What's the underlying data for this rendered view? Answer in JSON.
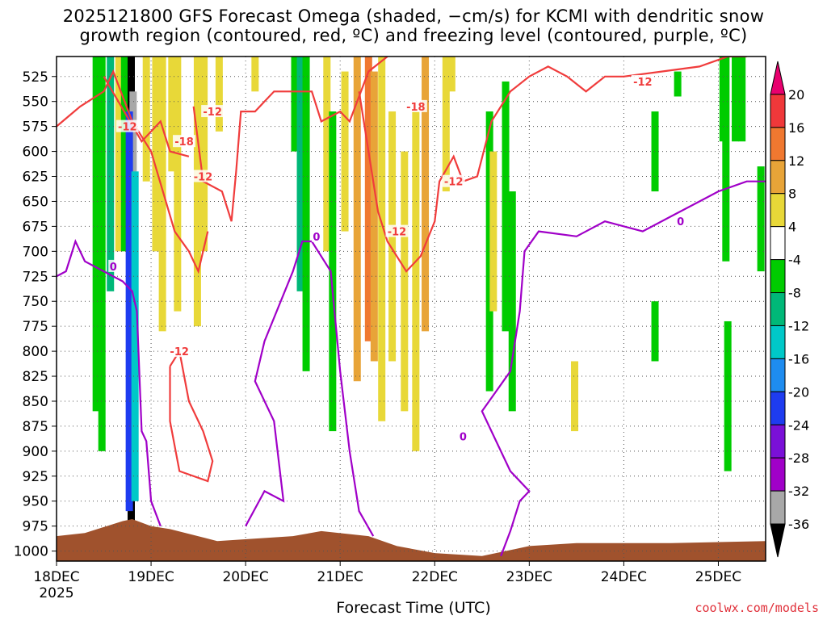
{
  "title_line1": "2025121800 GFS Forecast Omega (shaded, −cm/s) for KCMI with dendritic snow",
  "title_line2": "growth region (contoured, red, ºC) and freezing level (contoured, purple, ºC)",
  "x_axis_label": "Forecast Time (UTC)",
  "credit": "coolwx.com/models",
  "chart_data": {
    "type": "heatmap",
    "title": "2025121800 GFS Forecast Omega (shaded, −cm/s) for KCMI with dendritic snow growth region (contoured, red, ºC) and freezing level (contoured, purple, ºC)",
    "xlabel": "Forecast Time (UTC)",
    "ylabel": "",
    "x_ticks": [
      "18DEC",
      "19DEC",
      "20DEC",
      "21DEC",
      "22DEC",
      "23DEC",
      "24DEC",
      "25DEC"
    ],
    "x_tick_year": "2025",
    "x_range_days": [
      0,
      7.5
    ],
    "y_ticks": [
      525,
      550,
      575,
      600,
      625,
      650,
      675,
      700,
      725,
      750,
      775,
      800,
      825,
      850,
      875,
      900,
      925,
      950,
      975,
      1000
    ],
    "y_range_hpa": [
      505,
      1010
    ],
    "grid": "dotted",
    "colorbar": {
      "position": "right",
      "labels": [
        "20",
        "16",
        "12",
        "8",
        "4",
        "-4",
        "-8",
        "-12",
        "-16",
        "-20",
        "-24",
        "-28",
        "-32",
        "-36"
      ],
      "bins": [
        {
          "min": 20,
          "max": null,
          "color": "#e8006e"
        },
        {
          "min": 16,
          "max": 20,
          "color": "#f0383a"
        },
        {
          "min": 12,
          "max": 16,
          "color": "#f07830"
        },
        {
          "min": 8,
          "max": 12,
          "color": "#e8a438"
        },
        {
          "min": 4,
          "max": 8,
          "color": "#e8d838"
        },
        {
          "min": -4,
          "max": 4,
          "color": "#ffffff"
        },
        {
          "min": -8,
          "max": -4,
          "color": "#00cc00"
        },
        {
          "min": -12,
          "max": -8,
          "color": "#00b878"
        },
        {
          "min": -16,
          "max": -12,
          "color": "#00c8c8"
        },
        {
          "min": -20,
          "max": -16,
          "color": "#1e8cf0"
        },
        {
          "min": -24,
          "max": -20,
          "color": "#1e3cf0"
        },
        {
          "min": -28,
          "max": -24,
          "color": "#7a10d8"
        },
        {
          "min": -32,
          "max": -28,
          "color": "#a000c8"
        },
        {
          "min": -36,
          "max": -32,
          "color": "#a8a8a8"
        },
        {
          "min": null,
          "max": -36,
          "color": "#000000"
        }
      ]
    },
    "omega_shading": [
      {
        "t": 0.42,
        "p1": 505,
        "p2": 860,
        "value": -8
      },
      {
        "t": 0.48,
        "p1": 505,
        "p2": 900,
        "value": -6
      },
      {
        "t": 0.57,
        "p1": 505,
        "p2": 740,
        "value": -10
      },
      {
        "t": 0.66,
        "p1": 505,
        "p2": 700,
        "value": 5
      },
      {
        "t": 0.72,
        "p1": 505,
        "p2": 700,
        "value": -6
      },
      {
        "t": 0.79,
        "p1": 505,
        "p2": 970,
        "value": -40
      },
      {
        "t": 0.81,
        "p1": 540,
        "p2": 950,
        "value": -36
      },
      {
        "t": 0.77,
        "p1": 560,
        "p2": 960,
        "value": -24
      },
      {
        "t": 0.83,
        "p1": 620,
        "p2": 950,
        "value": -14
      },
      {
        "t": 0.95,
        "p1": 505,
        "p2": 630,
        "value": 5
      },
      {
        "t": 1.05,
        "p1": 505,
        "p2": 700,
        "value": 4.5
      },
      {
        "t": 1.12,
        "p1": 505,
        "p2": 780,
        "value": 5
      },
      {
        "t": 1.22,
        "p1": 505,
        "p2": 620,
        "value": 6
      },
      {
        "t": 1.28,
        "p1": 505,
        "p2": 760,
        "value": 5
      },
      {
        "t": 1.49,
        "p1": 505,
        "p2": 775,
        "value": 6
      },
      {
        "t": 1.56,
        "p1": 505,
        "p2": 700,
        "value": 5
      },
      {
        "t": 1.72,
        "p1": 505,
        "p2": 580,
        "value": 5
      },
      {
        "t": 2.1,
        "p1": 505,
        "p2": 540,
        "value": 5
      },
      {
        "t": 2.52,
        "p1": 505,
        "p2": 600,
        "value": -8
      },
      {
        "t": 2.58,
        "p1": 505,
        "p2": 740,
        "value": -12
      },
      {
        "t": 2.64,
        "p1": 505,
        "p2": 820,
        "value": -6
      },
      {
        "t": 2.86,
        "p1": 505,
        "p2": 700,
        "value": 5
      },
      {
        "t": 2.92,
        "p1": 560,
        "p2": 880,
        "value": -6
      },
      {
        "t": 3.05,
        "p1": 520,
        "p2": 680,
        "value": 5
      },
      {
        "t": 3.18,
        "p1": 505,
        "p2": 830,
        "value": 8
      },
      {
        "t": 3.3,
        "p1": 505,
        "p2": 790,
        "value": 13
      },
      {
        "t": 3.36,
        "p1": 520,
        "p2": 810,
        "value": 9
      },
      {
        "t": 3.44,
        "p1": 505,
        "p2": 870,
        "value": 6
      },
      {
        "t": 3.55,
        "p1": 560,
        "p2": 810,
        "value": 5
      },
      {
        "t": 3.68,
        "p1": 600,
        "p2": 860,
        "value": 5
      },
      {
        "t": 3.8,
        "p1": 560,
        "p2": 900,
        "value": 6
      },
      {
        "t": 3.9,
        "p1": 505,
        "p2": 780,
        "value": 9
      },
      {
        "t": 4.12,
        "p1": 505,
        "p2": 640,
        "value": 5
      },
      {
        "t": 4.18,
        "p1": 505,
        "p2": 540,
        "value": 5
      },
      {
        "t": 4.58,
        "p1": 560,
        "p2": 840,
        "value": -6
      },
      {
        "t": 4.62,
        "p1": 600,
        "p2": 760,
        "value": 5
      },
      {
        "t": 4.75,
        "p1": 530,
        "p2": 780,
        "value": -6
      },
      {
        "t": 4.82,
        "p1": 640,
        "p2": 860,
        "value": -6
      },
      {
        "t": 5.48,
        "p1": 810,
        "p2": 880,
        "value": 5
      },
      {
        "t": 6.33,
        "p1": 560,
        "p2": 640,
        "value": -6
      },
      {
        "t": 6.33,
        "p1": 750,
        "p2": 810,
        "value": -6
      },
      {
        "t": 6.57,
        "p1": 520,
        "p2": 545,
        "value": -6
      },
      {
        "t": 7.05,
        "p1": 505,
        "p2": 590,
        "value": -6
      },
      {
        "t": 7.08,
        "p1": 505,
        "p2": 710,
        "value": -6
      },
      {
        "t": 7.1,
        "p1": 770,
        "p2": 920,
        "value": -6
      },
      {
        "t": 7.18,
        "p1": 505,
        "p2": 590,
        "value": -6
      },
      {
        "t": 7.25,
        "p1": 505,
        "p2": 590,
        "value": -6
      },
      {
        "t": 7.45,
        "p1": 615,
        "p2": 720,
        "value": -6
      }
    ],
    "dendritic_contours": [
      {
        "level": -12,
        "points": [
          [
            0.0,
            575
          ],
          [
            0.25,
            555
          ],
          [
            0.5,
            540
          ],
          [
            0.6,
            520
          ],
          [
            0.8,
            570
          ],
          [
            1.0,
            600
          ],
          [
            1.25,
            680
          ],
          [
            1.4,
            700
          ],
          [
            1.5,
            720
          ],
          [
            1.6,
            680
          ]
        ]
      },
      {
        "level": -18,
        "points": [
          [
            0.5,
            525
          ],
          [
            0.9,
            590
          ],
          [
            1.1,
            570
          ],
          [
            1.2,
            600
          ],
          [
            1.4,
            605
          ]
        ]
      },
      {
        "level": -12,
        "points": [
          [
            1.45,
            555
          ],
          [
            1.55,
            630
          ],
          [
            1.75,
            640
          ],
          [
            1.85,
            670
          ],
          [
            1.9,
            620
          ],
          [
            1.95,
            560
          ],
          [
            2.1,
            560
          ],
          [
            2.3,
            540
          ],
          [
            2.5,
            540
          ],
          [
            2.7,
            540
          ],
          [
            2.8,
            570
          ],
          [
            3.0,
            560
          ],
          [
            3.1,
            570
          ],
          [
            3.3,
            520
          ],
          [
            3.5,
            505
          ]
        ]
      },
      {
        "level": -12,
        "points": [
          [
            3.2,
            540
          ],
          [
            3.3,
            600
          ],
          [
            3.4,
            660
          ],
          [
            3.5,
            690
          ],
          [
            3.7,
            720
          ],
          [
            3.85,
            705
          ],
          [
            4.0,
            670
          ],
          [
            4.05,
            630
          ],
          [
            4.2,
            605
          ],
          [
            4.3,
            630
          ],
          [
            4.45,
            625
          ],
          [
            4.6,
            570
          ],
          [
            4.8,
            540
          ],
          [
            5.0,
            525
          ],
          [
            5.2,
            515
          ],
          [
            5.4,
            525
          ],
          [
            5.6,
            540
          ],
          [
            5.8,
            525
          ],
          [
            6.0,
            525
          ],
          [
            6.4,
            520
          ],
          [
            6.8,
            515
          ],
          [
            7.1,
            505
          ],
          [
            7.3,
            505
          ]
        ]
      },
      {
        "level": -12,
        "points": [
          [
            1.2,
            815
          ],
          [
            1.3,
            800
          ],
          [
            1.4,
            850
          ],
          [
            1.55,
            880
          ],
          [
            1.65,
            910
          ],
          [
            1.6,
            930
          ],
          [
            1.3,
            920
          ],
          [
            1.2,
            870
          ],
          [
            1.2,
            815
          ]
        ]
      }
    ],
    "freezing_contours": [
      {
        "level": 0,
        "points": [
          [
            0.0,
            725
          ],
          [
            0.1,
            720
          ],
          [
            0.2,
            690
          ],
          [
            0.3,
            710
          ],
          [
            0.5,
            720
          ],
          [
            0.7,
            730
          ],
          [
            0.8,
            740
          ],
          [
            0.85,
            760
          ],
          [
            0.9,
            880
          ],
          [
            0.95,
            890
          ],
          [
            1.0,
            950
          ],
          [
            1.1,
            975
          ]
        ]
      },
      {
        "level": 0,
        "points": [
          [
            2.0,
            975
          ],
          [
            2.2,
            940
          ],
          [
            2.4,
            950
          ],
          [
            2.3,
            870
          ],
          [
            2.1,
            830
          ],
          [
            2.2,
            790
          ],
          [
            2.5,
            720
          ],
          [
            2.6,
            690
          ],
          [
            2.7,
            690
          ],
          [
            2.9,
            720
          ],
          [
            3.0,
            820
          ],
          [
            3.1,
            900
          ],
          [
            3.2,
            960
          ],
          [
            3.35,
            985
          ]
        ]
      },
      {
        "level": 0,
        "points": [
          [
            4.7,
            1005
          ],
          [
            4.8,
            980
          ],
          [
            4.9,
            950
          ],
          [
            5.0,
            940
          ],
          [
            4.8,
            920
          ],
          [
            4.6,
            880
          ],
          [
            4.5,
            860
          ],
          [
            4.65,
            840
          ],
          [
            4.8,
            820
          ],
          [
            4.9,
            760
          ],
          [
            4.95,
            700
          ],
          [
            5.1,
            680
          ],
          [
            5.5,
            685
          ],
          [
            5.8,
            670
          ],
          [
            6.2,
            680
          ],
          [
            6.5,
            665
          ],
          [
            6.8,
            650
          ],
          [
            7.0,
            640
          ],
          [
            7.3,
            630
          ],
          [
            7.5,
            630
          ]
        ]
      }
    ],
    "contour_labels": [
      {
        "text": "-12",
        "t": 0.75,
        "p": 575,
        "color": "#f03c3c"
      },
      {
        "text": "-18",
        "t": 1.35,
        "p": 590,
        "color": "#f03c3c"
      },
      {
        "text": "-12",
        "t": 1.65,
        "p": 560,
        "color": "#f03c3c"
      },
      {
        "text": "-12",
        "t": 1.55,
        "p": 625,
        "color": "#f03c3c"
      },
      {
        "text": "-18",
        "t": 3.8,
        "p": 555,
        "color": "#f03c3c"
      },
      {
        "text": "-12",
        "t": 3.6,
        "p": 680,
        "color": "#f03c3c"
      },
      {
        "text": "-12",
        "t": 4.2,
        "p": 630,
        "color": "#f03c3c"
      },
      {
        "text": "-12",
        "t": 6.2,
        "p": 530,
        "color": "#f03c3c"
      },
      {
        "text": "-12",
        "t": 1.3,
        "p": 800,
        "color": "#f03c3c"
      },
      {
        "text": "0",
        "t": 0.6,
        "p": 715,
        "color": "#a000c8"
      },
      {
        "text": "0",
        "t": 2.75,
        "p": 685,
        "color": "#a000c8"
      },
      {
        "text": "0",
        "t": 4.3,
        "p": 885,
        "color": "#a000c8"
      },
      {
        "text": "0",
        "t": 6.6,
        "p": 670,
        "color": "#a000c8"
      }
    ],
    "terrain": {
      "color": "#a0522d",
      "points": [
        [
          0.0,
          985
        ],
        [
          0.3,
          982
        ],
        [
          0.7,
          970
        ],
        [
          0.8,
          968
        ],
        [
          1.0,
          975
        ],
        [
          1.2,
          978
        ],
        [
          1.7,
          990
        ],
        [
          2.5,
          985
        ],
        [
          2.8,
          980
        ],
        [
          3.3,
          985
        ],
        [
          3.6,
          995
        ],
        [
          4.0,
          1002
        ],
        [
          4.5,
          1005
        ],
        [
          5.0,
          995
        ],
        [
          5.5,
          992
        ],
        [
          6.5,
          992
        ],
        [
          7.5,
          990
        ]
      ]
    }
  }
}
